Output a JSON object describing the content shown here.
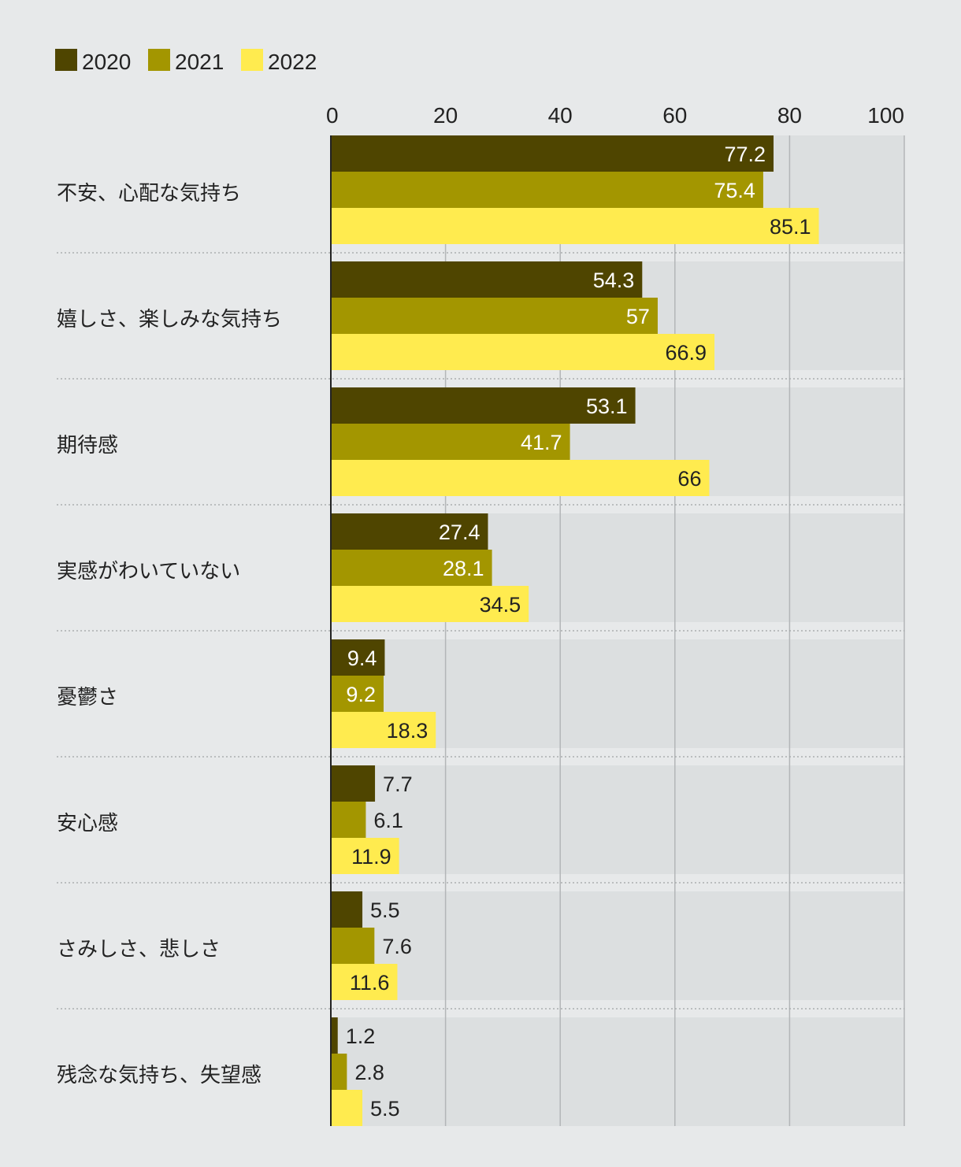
{
  "chart_data": {
    "type": "bar",
    "orientation": "horizontal",
    "title": "",
    "xlabel": "",
    "ylabel": "",
    "xlim": [
      0,
      100
    ],
    "ticks": [
      "0",
      "20",
      "40",
      "60",
      "80",
      "100"
    ],
    "tick_values": [
      0,
      20,
      40,
      60,
      80,
      100
    ],
    "legend_position": "top-left",
    "grid": true,
    "categories": [
      "不安、心配な気持ち",
      "嬉しさ、楽しみな気持ち",
      "期待感",
      "実感がわいていない",
      "憂鬱さ",
      "安心感",
      "さみしさ、悲しさ",
      "残念な気持ち、失望感"
    ],
    "series": [
      {
        "name": "2020",
        "color": "#4f4500",
        "labels": [
          "77.2",
          "54.3",
          "53.1",
          "27.4",
          "9.4",
          "7.7",
          "5.5",
          "1.2"
        ],
        "values": [
          77.2,
          54.3,
          53.1,
          27.4,
          9.4,
          7.7,
          5.5,
          1.2
        ]
      },
      {
        "name": "2021",
        "color": "#a39600",
        "labels": [
          "75.4",
          "57",
          "41.7",
          "28.1",
          "9.2",
          "6.1",
          "7.6",
          "2.8"
        ],
        "values": [
          75.4,
          57,
          41.7,
          28.1,
          9.2,
          6.1,
          7.6,
          2.8
        ]
      },
      {
        "name": "2022",
        "color": "#ffeb4f",
        "labels": [
          "85.1",
          "66.9",
          "66",
          "34.5",
          "18.3",
          "11.9",
          "11.6",
          "5.5"
        ],
        "values": [
          85.1,
          66.9,
          66,
          34.5,
          18.3,
          11.9,
          11.6,
          5.5
        ]
      }
    ]
  }
}
